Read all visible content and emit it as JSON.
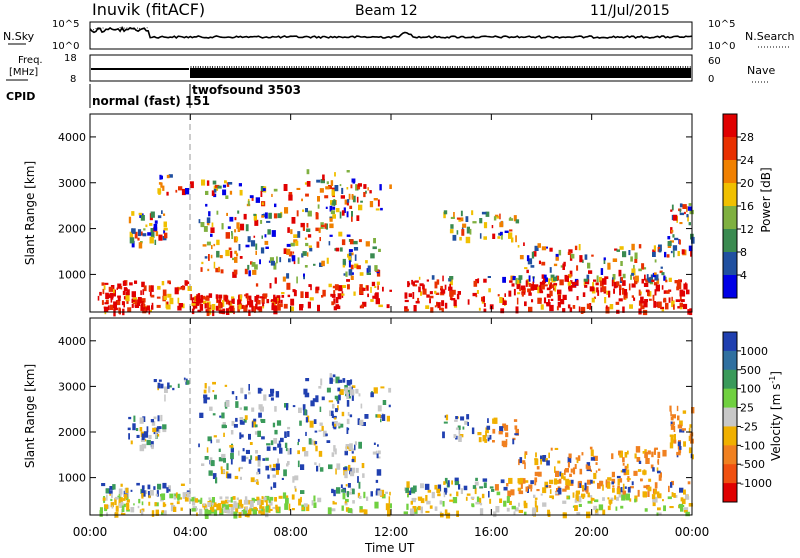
{
  "header": {
    "station": "Inuvik (fitACF)",
    "beam": "Beam 12",
    "date": "11/Jul/2015"
  },
  "chart_data": [
    {
      "type": "line",
      "panel": "noise",
      "left_label_top": "N.Sky",
      "right_label": "N.Search",
      "left_ticks": [
        "10^5",
        "10^0"
      ],
      "right_ticks": [
        "10^5",
        "10^0"
      ],
      "yscale": "log"
    },
    {
      "type": "line",
      "panel": "frequency",
      "left_label_lines": [
        "Freq.",
        "[MHz]"
      ],
      "right_label": "Nave",
      "left_ticks": [
        "18",
        "8"
      ],
      "right_ticks": [
        "60",
        "0"
      ],
      "ylim_left": [
        8,
        18
      ],
      "ylim_right": [
        0,
        60
      ]
    },
    {
      "type": "table",
      "panel": "cpid",
      "label": "CPID",
      "segments": [
        {
          "name": "normal (fast) 151",
          "start_hour": 0,
          "end_hour": 4
        },
        {
          "name": "twofsound 3503",
          "start_hour": 4,
          "end_hour": 24
        }
      ]
    },
    {
      "type": "heatmap",
      "panel": "power",
      "ylabel": "Slant Range [km]",
      "yticks": [
        "1000",
        "2000",
        "3000",
        "4000"
      ],
      "ylim": [
        180,
        4500
      ],
      "colorbar_label": "Power [dB]",
      "colorbar_ticks": [
        "4",
        "8",
        "12",
        "16",
        "20",
        "24",
        "28"
      ],
      "colorbar_range": [
        0,
        30
      ],
      "colors": [
        "#0000e6",
        "#2050a0",
        "#3a8a50",
        "#7fb040",
        "#f0c000",
        "#f08000",
        "#e83000",
        "#e00000"
      ]
    },
    {
      "type": "heatmap",
      "panel": "velocity",
      "ylabel": "Slant Range [km]",
      "yticks": [
        "1000",
        "2000",
        "3000",
        "4000"
      ],
      "ylim": [
        180,
        4500
      ],
      "colorbar_label": "Velocity [m s",
      "colorbar_label_sup": "-1",
      "colorbar_label_end": "]",
      "colorbar_ticks": [
        "1000",
        "500",
        "100",
        "25",
        "-25",
        "-100",
        "-500",
        "-1000"
      ],
      "colors": [
        "#2040b0",
        "#3070a0",
        "#3a9a5a",
        "#70d040",
        "#c8c8c8",
        "#f0b000",
        "#f08020",
        "#f05010",
        "#e00000"
      ]
    }
  ],
  "axis": {
    "xticks": [
      "00:00",
      "04:00",
      "08:00",
      "12:00",
      "16:00",
      "20:00",
      "00:00"
    ],
    "xlabel": "Time UT",
    "xlim_hours": [
      0,
      24
    ]
  }
}
